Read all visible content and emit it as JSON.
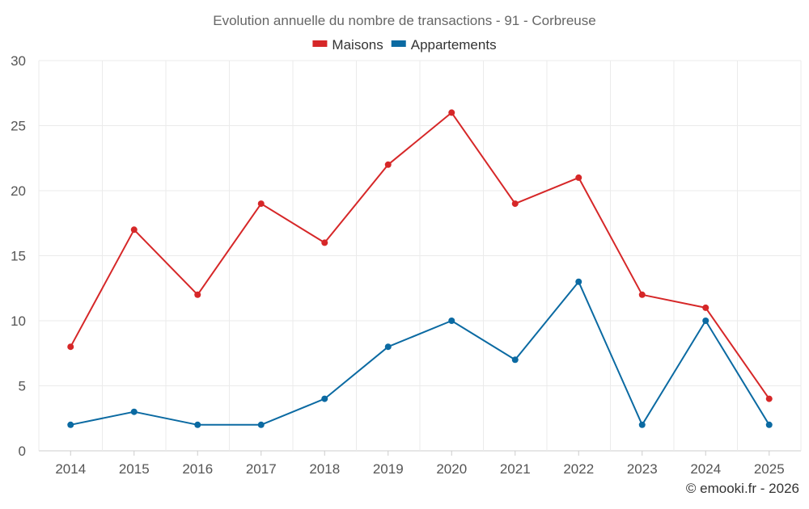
{
  "chart_data": {
    "type": "line",
    "title": "Evolution annuelle du nombre de transactions - 91 - Corbreuse",
    "categories": [
      "2014",
      "2015",
      "2016",
      "2017",
      "2018",
      "2019",
      "2020",
      "2021",
      "2022",
      "2023",
      "2024",
      "2025"
    ],
    "series": [
      {
        "name": "Maisons",
        "color": "#d62728",
        "values": [
          8,
          17,
          12,
          19,
          16,
          22,
          26,
          19,
          21,
          12,
          11,
          4
        ]
      },
      {
        "name": "Appartements",
        "color": "#0b6aa2",
        "values": [
          2,
          3,
          2,
          2,
          4,
          8,
          10,
          7,
          13,
          2,
          10,
          2
        ]
      }
    ],
    "ylim": [
      0,
      30
    ],
    "yticks": [
      "0",
      "5",
      "10",
      "15",
      "20",
      "25",
      "30"
    ],
    "grid": true,
    "legend": "top-center",
    "xlabel": "",
    "ylabel": ""
  },
  "credit": "© emooki.fr - 2026"
}
